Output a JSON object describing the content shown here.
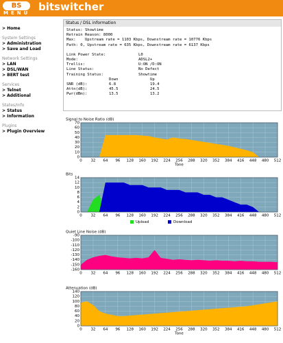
{
  "header": {
    "logo": "BS",
    "menu": "MENU",
    "brand": "bitswitcher"
  },
  "nav": [
    {
      "kind": "link",
      "text": "> Home"
    },
    {
      "kind": "section",
      "text": "System Settings"
    },
    {
      "kind": "link",
      "text": "> Administration"
    },
    {
      "kind": "link",
      "text": "> Save and Load"
    },
    {
      "kind": "section",
      "text": "Network Settings"
    },
    {
      "kind": "link",
      "text": "> LAN"
    },
    {
      "kind": "link",
      "text": "> DSL/WAN"
    },
    {
      "kind": "link",
      "text": "> BERT test"
    },
    {
      "kind": "section",
      "text": "Services"
    },
    {
      "kind": "link",
      "text": "> Telnet"
    },
    {
      "kind": "link",
      "text": "> Additional"
    },
    {
      "kind": "section",
      "text": "States/Info"
    },
    {
      "kind": "link",
      "text": "> Status"
    },
    {
      "kind": "link",
      "text": "> Information"
    },
    {
      "kind": "section",
      "text": "Plugins"
    },
    {
      "kind": "link",
      "text": "> Plugin Overview"
    }
  ],
  "status": {
    "title": "Status / DSL information",
    "lines": [
      "Status: Showtime",
      "Retrain Reason: 8000",
      "Max:    Upstream rate = 1103 Kbps, Downstream rate = 10776 Kbps",
      "Path: 0, Upstream rate = 635 Kbps, Downstream rate = 6137 Kbps"
    ],
    "items": [
      [
        "Link Power State:",
        "L0"
      ],
      [
        "Mode:",
        "ADSL2+"
      ],
      [
        "Trellis:",
        "U:ON /D:ON"
      ],
      [
        "Line Status:",
        "No Defect"
      ],
      [
        "Training Status:",
        "Showtime"
      ]
    ],
    "table": {
      "columns": [
        "Down",
        "Up"
      ],
      "rows": [
        [
          "SNR (dB):",
          "6.8",
          "19.4"
        ],
        [
          "Attn(dB):",
          "45.5",
          "24.5"
        ],
        [
          "Pwr(dBm):",
          "13.5",
          "13.2"
        ]
      ]
    }
  },
  "charts": [
    {
      "type": "area",
      "title": "Signal to Noise Ratio (dB)",
      "xlabel": "Tone",
      "x": [
        0,
        16,
        32,
        48,
        64,
        80,
        96,
        112,
        128,
        144,
        160,
        176,
        192,
        208,
        224,
        240,
        256,
        272,
        288,
        304,
        320,
        336,
        352,
        368,
        384,
        400,
        416,
        432,
        448,
        464,
        480,
        496,
        512
      ],
      "xlim": [
        0,
        512
      ],
      "xticks": [
        0,
        32,
        64,
        96,
        128,
        160,
        192,
        224,
        256,
        288,
        320,
        352,
        384,
        416,
        448,
        480,
        512
      ],
      "ylim": [
        0,
        70
      ],
      "yticks": [
        0,
        10,
        20,
        30,
        40,
        50,
        60,
        70
      ],
      "series": [
        {
          "color": "#ffb300",
          "values": [
            0,
            0,
            0,
            0,
            45,
            45,
            45,
            45,
            45,
            45,
            44,
            43,
            40,
            38,
            36,
            40,
            38,
            37,
            35,
            33,
            31,
            29,
            27,
            25,
            23,
            20,
            17,
            14,
            10,
            0,
            0,
            0,
            0
          ]
        }
      ]
    },
    {
      "type": "area",
      "title": "Bits",
      "x": [
        0,
        16,
        32,
        48,
        64,
        80,
        96,
        112,
        128,
        144,
        160,
        176,
        192,
        208,
        224,
        240,
        256,
        272,
        288,
        304,
        320,
        336,
        352,
        368,
        384,
        400,
        416,
        432,
        448,
        464,
        480,
        496,
        512
      ],
      "xlim": [
        0,
        512
      ],
      "xticks": [
        0,
        32,
        64,
        96,
        128,
        160,
        192,
        224,
        256,
        288,
        320,
        352,
        384,
        416,
        448,
        480,
        512
      ],
      "ylim": [
        0,
        14
      ],
      "yticks": [
        0,
        2,
        4,
        6,
        8,
        10,
        12,
        14
      ],
      "series": [
        {
          "name": "Upload",
          "color": "#22dd22",
          "values": [
            0,
            0,
            5,
            7,
            0,
            0,
            0,
            0,
            0,
            0,
            0,
            0,
            0,
            0,
            0,
            0,
            0,
            0,
            0,
            0,
            0,
            0,
            0,
            0,
            0,
            0,
            0,
            0,
            0,
            0,
            0,
            0,
            0
          ]
        },
        {
          "name": "Download",
          "color": "#0000cc",
          "values": [
            0,
            0,
            0,
            0,
            12,
            12,
            12,
            12,
            11,
            11,
            11,
            10,
            10,
            10,
            9,
            9,
            9,
            8,
            8,
            8,
            7,
            7,
            6,
            6,
            5,
            4,
            3,
            3,
            2,
            0,
            0,
            0,
            0
          ]
        }
      ]
    },
    {
      "type": "area",
      "title": "Quiet Line Noise (dB)",
      "x": [
        0,
        16,
        32,
        48,
        64,
        80,
        96,
        112,
        128,
        144,
        160,
        176,
        192,
        208,
        224,
        240,
        256,
        272,
        288,
        304,
        320,
        336,
        352,
        368,
        384,
        400,
        416,
        432,
        448,
        464,
        480,
        496,
        512
      ],
      "xlim": [
        0,
        512
      ],
      "xticks": [
        0,
        32,
        64,
        96,
        128,
        160,
        192,
        224,
        256,
        288,
        320,
        352,
        384,
        416,
        448,
        480,
        512
      ],
      "ylim": [
        -160,
        -90
      ],
      "yticks": [
        -160,
        -150,
        -140,
        -130,
        -120,
        -110,
        -100,
        -90
      ],
      "series": [
        {
          "color": "#ff0080",
          "values": [
            -150,
            -140,
            -135,
            -132,
            -130,
            -133,
            -135,
            -136,
            -137,
            -136,
            -137,
            -135,
            -120,
            -136,
            -138,
            -140,
            -139,
            -140,
            -141,
            -140,
            -141,
            -142,
            -141,
            -142,
            -142,
            -143,
            -142,
            -143,
            -143,
            -144,
            -144,
            -144,
            -145
          ]
        }
      ]
    },
    {
      "type": "area",
      "title": "Attenuation (dB)",
      "xlabel": "Tone",
      "x": [
        0,
        16,
        32,
        48,
        64,
        80,
        96,
        112,
        128,
        144,
        160,
        176,
        192,
        208,
        224,
        240,
        256,
        272,
        288,
        304,
        320,
        336,
        352,
        368,
        384,
        400,
        416,
        432,
        448,
        464,
        480,
        496,
        512
      ],
      "xlim": [
        0,
        512
      ],
      "xticks": [
        0,
        32,
        64,
        96,
        128,
        160,
        192,
        224,
        256,
        288,
        320,
        352,
        384,
        416,
        448,
        480,
        512
      ],
      "ylim": [
        0,
        140
      ],
      "yticks": [
        0,
        20,
        40,
        60,
        80,
        100,
        120,
        140
      ],
      "series": [
        {
          "color": "#ffb300",
          "values": [
            95,
            100,
            85,
            60,
            50,
            45,
            40,
            40,
            42,
            44,
            46,
            48,
            50,
            52,
            54,
            56,
            58,
            60,
            62,
            64,
            66,
            68,
            70,
            72,
            74,
            76,
            78,
            80,
            84,
            88,
            92,
            96,
            100
          ]
        }
      ]
    }
  ]
}
